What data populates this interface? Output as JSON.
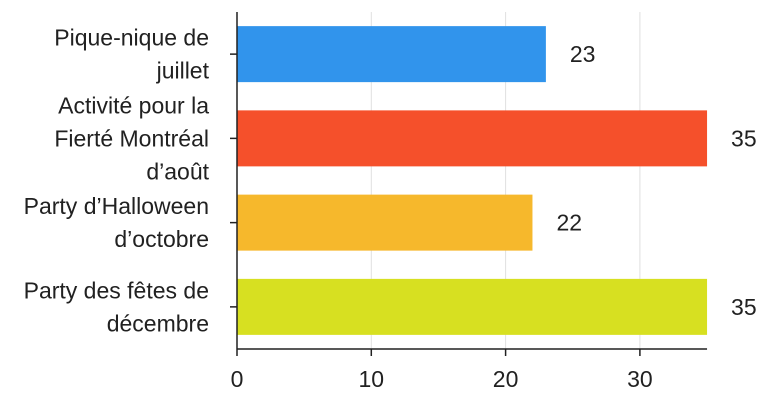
{
  "chart_data": {
    "type": "bar",
    "orientation": "horizontal",
    "categories": [
      [
        "Pique-nique de",
        "juillet"
      ],
      [
        "Activité pour la",
        "Fierté Montréal",
        "d’août"
      ],
      [
        "Party d’Halloween",
        "d’octobre"
      ],
      [
        "Party des fêtes de",
        "décembre"
      ]
    ],
    "values": [
      23,
      35,
      22,
      35
    ],
    "data_labels": [
      "23",
      "35",
      "22",
      "35"
    ],
    "colors": [
      "#3194ec",
      "#f5502b",
      "#f6b82c",
      "#d7e021"
    ],
    "xlim": [
      0,
      35
    ],
    "xticks": [
      0,
      10,
      20,
      30
    ],
    "xtick_labels": [
      "0",
      "10",
      "20",
      "30"
    ],
    "grid": true,
    "legend": "none"
  }
}
